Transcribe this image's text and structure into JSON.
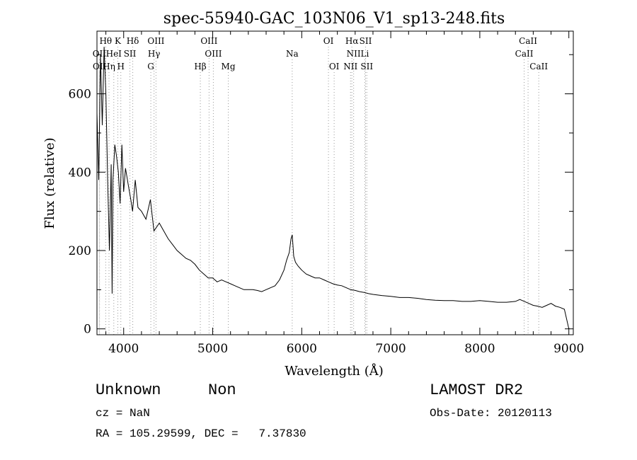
{
  "chart_data": {
    "type": "line",
    "title": "spec-55940-GAC_103N06_V1_sp13-248.fits",
    "xlabel": "Wavelength (Å)",
    "ylabel": "Flux (relative)",
    "xlim": [
      3700,
      9050
    ],
    "ylim": [
      -15,
      760
    ],
    "xticks": [
      4000,
      5000,
      6000,
      7000,
      8000,
      9000
    ],
    "yticks": [
      0,
      200,
      400,
      600
    ],
    "grid": false,
    "series": [
      {
        "x": [
          3700,
          3720,
          3740,
          3760,
          3780,
          3800,
          3820,
          3840,
          3860,
          3870,
          3880,
          3900,
          3920,
          3940,
          3960,
          3980,
          4000,
          4020,
          4050,
          4080,
          4100,
          4130,
          4160,
          4200,
          4250,
          4300,
          4340,
          4400,
          4450,
          4500,
          4550,
          4600,
          4650,
          4700,
          4750,
          4800,
          4850,
          4900,
          4950,
          5000,
          5050,
          5100,
          5150,
          5200,
          5250,
          5300,
          5350,
          5400,
          5450,
          5500,
          5550,
          5600,
          5650,
          5700,
          5750,
          5800,
          5830,
          5860,
          5880,
          5893,
          5910,
          5930,
          5960,
          6000,
          6050,
          6100,
          6150,
          6200,
          6250,
          6300,
          6350,
          6400,
          6450,
          6500,
          6550,
          6600,
          6650,
          6700,
          6750,
          6800,
          6900,
          7000,
          7100,
          7200,
          7300,
          7400,
          7500,
          7600,
          7700,
          7800,
          7900,
          8000,
          8100,
          8200,
          8300,
          8400,
          8450,
          8500,
          8550,
          8600,
          8650,
          8700,
          8750,
          8800,
          8850,
          8900,
          8950,
          8980,
          9000
        ],
        "y": [
          550,
          380,
          700,
          520,
          720,
          600,
          380,
          200,
          420,
          90,
          380,
          470,
          440,
          400,
          320,
          470,
          350,
          410,
          370,
          330,
          300,
          380,
          310,
          300,
          280,
          330,
          250,
          270,
          250,
          230,
          215,
          200,
          190,
          180,
          175,
          165,
          150,
          140,
          130,
          130,
          120,
          125,
          120,
          115,
          110,
          105,
          100,
          100,
          100,
          98,
          95,
          100,
          105,
          110,
          125,
          150,
          175,
          195,
          230,
          240,
          185,
          170,
          160,
          150,
          140,
          135,
          130,
          130,
          125,
          120,
          115,
          112,
          110,
          105,
          100,
          98,
          95,
          93,
          90,
          88,
          85,
          83,
          80,
          80,
          78,
          75,
          73,
          72,
          72,
          70,
          70,
          72,
          70,
          68,
          68,
          70,
          75,
          70,
          65,
          60,
          58,
          55,
          60,
          65,
          58,
          55,
          50,
          20,
          0
        ]
      }
    ],
    "lines": [
      {
        "label": "Hθ",
        "x": 3798,
        "row": 0
      },
      {
        "label": "K",
        "x": 3934,
        "row": 0
      },
      {
        "label": "Hδ",
        "x": 4102,
        "row": 0
      },
      {
        "label": "OIII",
        "x": 4363,
        "row": 0
      },
      {
        "label": "OIII",
        "x": 4959,
        "row": 0
      },
      {
        "label": "OI",
        "x": 6300,
        "row": 0
      },
      {
        "label": "Hα",
        "x": 6563,
        "row": 0
      },
      {
        "label": "SII",
        "x": 6717,
        "row": 0
      },
      {
        "label": "CaII",
        "x": 8542,
        "row": 0
      },
      {
        "label": "OII",
        "x": 3727,
        "row": 1
      },
      {
        "label": "HeI",
        "x": 3889,
        "row": 1
      },
      {
        "label": "SII",
        "x": 4070,
        "row": 1
      },
      {
        "label": "Hγ",
        "x": 4341,
        "row": 1
      },
      {
        "label": "OIII",
        "x": 5007,
        "row": 1
      },
      {
        "label": "Na",
        "x": 5893,
        "row": 1
      },
      {
        "label": "NII",
        "x": 6583,
        "row": 1
      },
      {
        "label": "Li",
        "x": 6708,
        "row": 1
      },
      {
        "label": "CaII",
        "x": 8498,
        "row": 1
      },
      {
        "label": "OII",
        "x": 3729,
        "row": 2
      },
      {
        "label": "Hη",
        "x": 3835,
        "row": 2
      },
      {
        "label": "H",
        "x": 3968,
        "row": 2
      },
      {
        "label": "G",
        "x": 4305,
        "row": 2
      },
      {
        "label": "Hβ",
        "x": 4861,
        "row": 2
      },
      {
        "label": "Mg",
        "x": 5175,
        "row": 2
      },
      {
        "label": "OI",
        "x": 6364,
        "row": 2
      },
      {
        "label": "NII",
        "x": 6548,
        "row": 2
      },
      {
        "label": "SII",
        "x": 6731,
        "row": 2
      },
      {
        "label": "CaII",
        "x": 8662,
        "row": 2
      }
    ]
  },
  "info": {
    "class": "Unknown",
    "subclass": "Non",
    "survey": "LAMOST DR2",
    "cz": "cz = NaN",
    "obs_date": "Obs-Date: 20120113",
    "coords": "RA = 105.29599, DEC =   7.37830"
  }
}
